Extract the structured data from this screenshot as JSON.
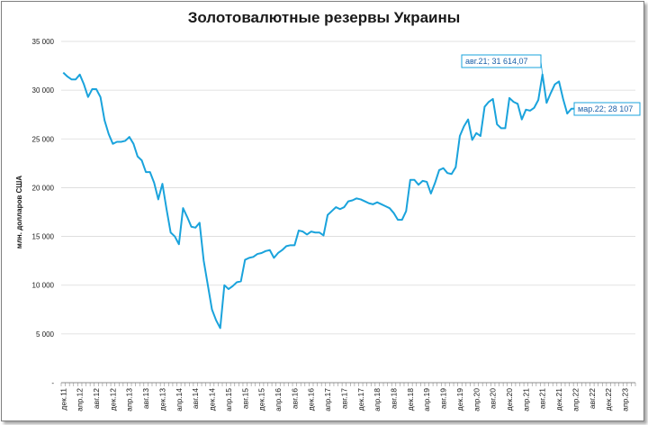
{
  "chart_data": {
    "type": "line",
    "title": "Золотовалютные резервы Украины",
    "ylabel": "млн. долларов США",
    "xlabel": "",
    "ylim": [
      0,
      35000
    ],
    "yticks": [
      0,
      5000,
      10000,
      15000,
      20000,
      25000,
      30000,
      35000
    ],
    "ytick_labels": [
      "-",
      "5 000",
      "10 000",
      "15 000",
      "20 000",
      "25 000",
      "30 000",
      "35 000"
    ],
    "grid": "horizontal",
    "line_color": "#1aa3dc",
    "x_start": "2011-12",
    "x_end": "2023-06",
    "xtick_labels": [
      "дек.11",
      "апр.12",
      "авг.12",
      "дек.12",
      "апр.13",
      "авг.13",
      "дек.13",
      "апр.14",
      "авг.14",
      "дек.14",
      "апр.15",
      "авг.15",
      "дек.15",
      "апр.16",
      "авг.16",
      "дек.16",
      "апр.17",
      "авг.17",
      "дек.17",
      "апр.18",
      "авг.18",
      "дек.18",
      "апр.19",
      "авг.19",
      "дек.19",
      "апр.20",
      "авг.20",
      "дек.20",
      "апр.21",
      "авг.21",
      "дек.21",
      "апр.22",
      "авг.22",
      "дек.22",
      "апр.23"
    ],
    "series": [
      {
        "values": [
          31800,
          31400,
          31100,
          31100,
          31600,
          30600,
          29300,
          30100,
          30100,
          29300,
          26900,
          25500,
          24500,
          24700,
          24700,
          24800,
          25200,
          24500,
          23200,
          22800,
          21600,
          21600,
          20500,
          18800,
          20400,
          17800,
          15400,
          15000,
          14200,
          17900,
          17000,
          16000,
          15900,
          16400,
          12500,
          10000,
          7500,
          6400,
          5600,
          10000,
          9600,
          9900,
          10300,
          10400,
          12600,
          12800,
          12900,
          13200,
          13300,
          13500,
          13600,
          12800,
          13300,
          13600,
          14000,
          14100,
          14100,
          15600,
          15500,
          15200,
          15500,
          15400,
          15400,
          15100,
          17200,
          17600,
          18000,
          17800,
          18000,
          18600,
          18700,
          18900,
          18800,
          18600,
          18400,
          18300,
          18500,
          18300,
          18100,
          17900,
          17400,
          16700,
          16700,
          17600,
          20800,
          20800,
          20300,
          20700,
          20600,
          19400,
          20500,
          21800,
          22000,
          21500,
          21400,
          22100,
          25300,
          26300,
          27000,
          24900,
          25600,
          25300,
          28300,
          28800,
          29100,
          26500,
          26100,
          26100,
          29200,
          28800,
          28600,
          27000,
          28000,
          27900,
          28200,
          29000,
          31614.07,
          28700,
          29700,
          30600,
          30900,
          29100,
          27600,
          28100,
          28107
        ]
      }
    ],
    "annotations": [
      {
        "text": "авг.21;  31 614,07",
        "x": "2021-08",
        "y": 31614.07
      },
      {
        "text": "мар.22; 28 107",
        "x": "2022-03",
        "y": 28107
      }
    ]
  }
}
